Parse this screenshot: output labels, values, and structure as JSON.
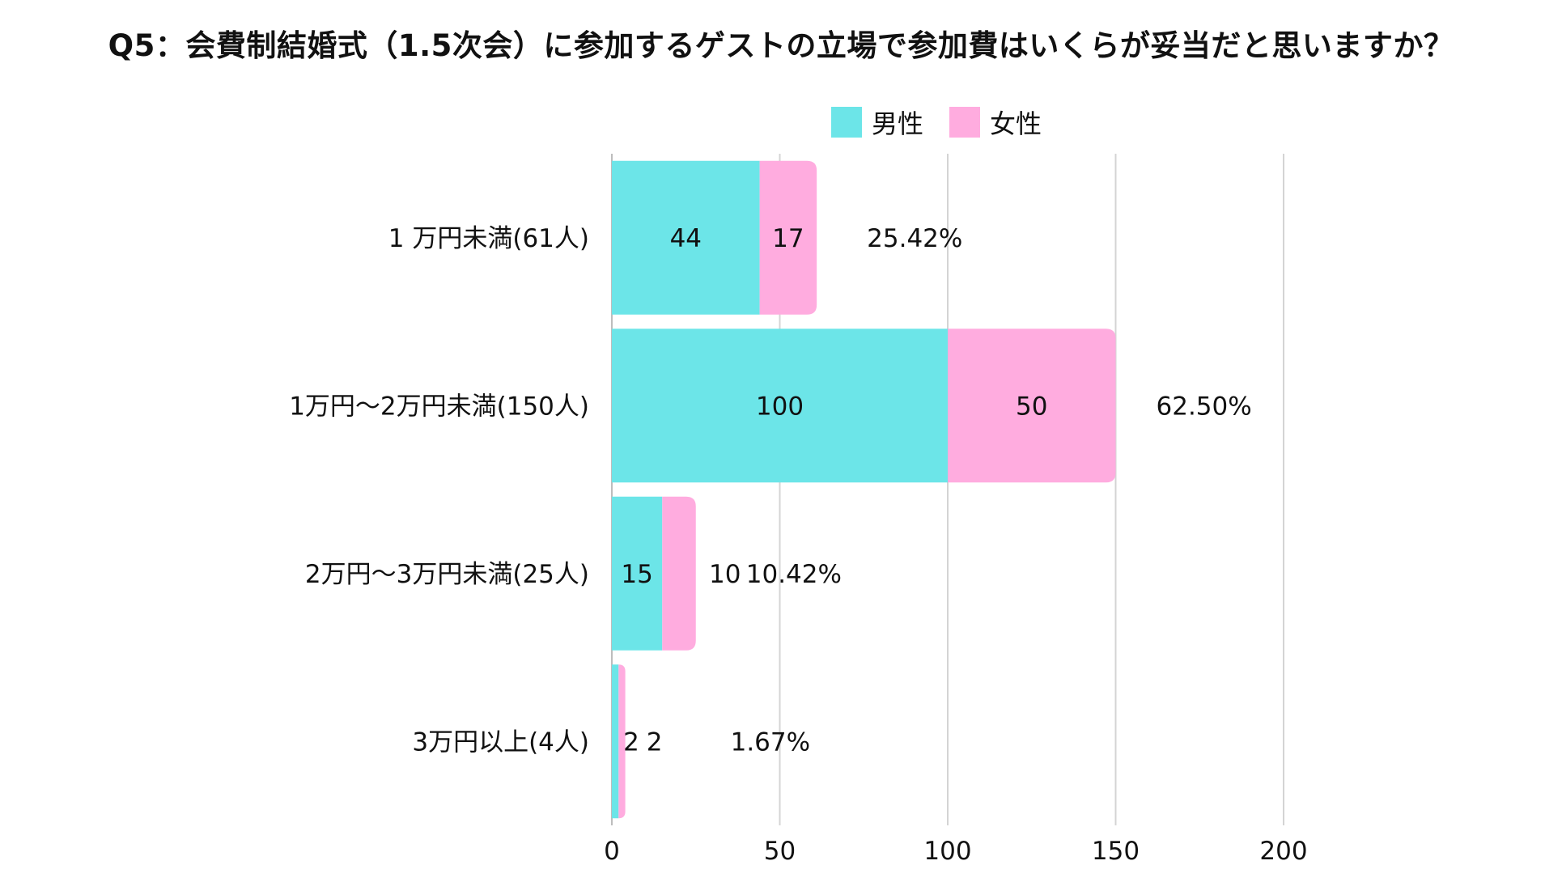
{
  "title": "Q5：会費制結婚式（1.5次会）に参加するゲストの立場で参加費はいくらが妥当だと思いますか？",
  "legend": [
    {
      "name": "男性",
      "color": "#6ce5e8"
    },
    {
      "name": "女性",
      "color": "#ffacdf"
    }
  ],
  "chart_data": {
    "type": "bar",
    "orientation": "horizontal",
    "stacked": true,
    "title": "Q5：会費制結婚式（1.5次会）に参加するゲストの立場で参加費はいくらが妥当だと思いますか？",
    "categories": [
      "1 万円未満(61人)",
      "1万円〜2万円未満(150人)",
      "2万円〜3万円未満(25人)",
      "3万円以上(4人)"
    ],
    "series": [
      {
        "name": "男性",
        "color": "#6ce5e8",
        "values": [
          44,
          100,
          15,
          2
        ],
        "labels": [
          "44",
          "100",
          "15",
          "2"
        ]
      },
      {
        "name": "女性",
        "color": "#ffacdf",
        "values": [
          17,
          50,
          10,
          2
        ],
        "labels": [
          "17",
          "50",
          "10",
          "2"
        ]
      }
    ],
    "percentages": [
      "25.42%",
      "62.50%",
      "10.42%",
      "1.67%"
    ],
    "xlim": [
      0,
      200
    ],
    "xticks": [
      "0",
      "50",
      "100",
      "150",
      "200"
    ],
    "grid": true,
    "legend_position": "top"
  }
}
